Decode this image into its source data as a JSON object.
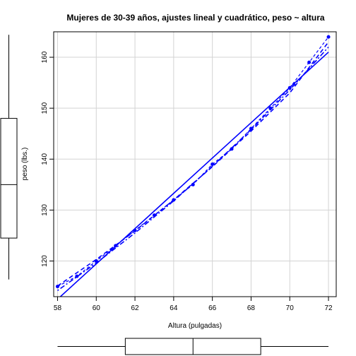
{
  "chart_data": {
    "type": "scatter",
    "title": "Mujeres de 30-39 años, ajustes lineal y cuadrático, peso ~ altura",
    "xlabel": "Altura (pulgadas)",
    "ylabel": "peso (lbs.)",
    "xlim": [
      57.8,
      72.4
    ],
    "ylim": [
      113,
      165
    ],
    "xticks": [
      58,
      60,
      62,
      64,
      66,
      68,
      70,
      72
    ],
    "yticks": [
      120,
      130,
      140,
      150,
      160
    ],
    "grid": true,
    "colors": {
      "series": "#0000ff",
      "grid": "#d3d3d3",
      "box": "#000000"
    },
    "x": [
      58,
      59,
      60,
      61,
      62,
      63,
      64,
      65,
      66,
      67,
      68,
      69,
      70,
      71,
      72
    ],
    "series": [
      {
        "style": "points-dashed",
        "values": [
          115,
          117,
          120,
          123,
          126,
          129,
          132,
          135,
          139,
          142,
          146,
          150,
          154,
          159,
          164
        ]
      }
    ],
    "fits": [
      {
        "kind": "linear",
        "line": "solid",
        "x": [
          58,
          72
        ],
        "y": [
          112.5,
          161
        ]
      },
      {
        "kind": "quadratic",
        "line": "dashed",
        "x": [
          58,
          60,
          62,
          64,
          66,
          68,
          70,
          72
        ],
        "y": [
          115.1,
          120.3,
          125.9,
          132.0,
          138.5,
          145.5,
          153.0,
          163.0
        ]
      },
      {
        "kind": "quadratic",
        "line": "dotdash",
        "x": [
          58,
          60,
          62,
          64,
          66,
          68,
          70,
          72
        ],
        "y": [
          114.2,
          119.6,
          125.5,
          131.8,
          138.6,
          145.8,
          153.6,
          162.0
        ]
      }
    ],
    "boxplot_x": {
      "min": 58,
      "q1": 61.5,
      "median": 65,
      "q3": 68.5,
      "max": 72
    },
    "boxplot_y": {
      "min": 115,
      "q1": 124.5,
      "median": 135,
      "q3": 148,
      "max": 164
    }
  }
}
